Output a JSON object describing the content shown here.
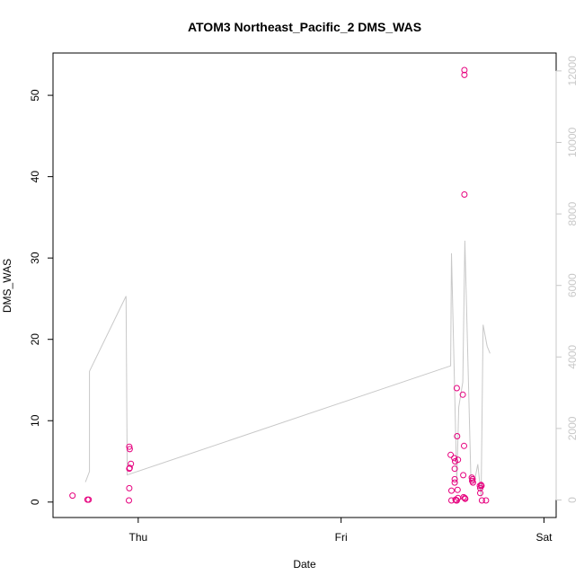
{
  "chart_data": {
    "type": "scatter",
    "title": "ATOM3 Northeast_Pacific_2 DMS_WAS",
    "xlabel": "Date",
    "ylabel": "DMS_WAS",
    "x_ticks": [
      "Thu",
      "Fri",
      "Sat"
    ],
    "xlim": [
      -0.21,
      1.03
    ],
    "ylim": [
      -1.9,
      55.2
    ],
    "y_ticks": [
      0,
      10,
      20,
      30,
      40,
      50
    ],
    "y2_ticks": [
      0,
      2000,
      4000,
      6000,
      8000,
      10000,
      12000
    ],
    "y2lim": [
      -490,
      12500
    ],
    "point_color": "#e6007e",
    "line_color": "#c8c8c8",
    "right_axis_color": "#c8c8c8",
    "series": [
      {
        "kind": "points",
        "points": [
          [
            -0.162,
            0.8
          ],
          [
            -0.125,
            0.3
          ],
          [
            -0.122,
            0.3
          ],
          [
            -0.022,
            6.8
          ],
          [
            -0.021,
            6.5
          ],
          [
            -0.022,
            4.1
          ],
          [
            -0.021,
            4.2
          ],
          [
            -0.018,
            4.7
          ],
          [
            -0.022,
            1.7
          ],
          [
            -0.023,
            0.2
          ],
          [
            0.77,
            5.8
          ],
          [
            0.772,
            1.4
          ],
          [
            0.772,
            0.2
          ],
          [
            0.779,
            5.4
          ],
          [
            0.78,
            4.1
          ],
          [
            0.78,
            2.4
          ],
          [
            0.78,
            2.8
          ],
          [
            0.781,
            5.0
          ],
          [
            0.782,
            0.3
          ],
          [
            0.784,
            0.2
          ],
          [
            0.785,
            0.2
          ],
          [
            0.785,
            14.0
          ],
          [
            0.786,
            8.1
          ],
          [
            0.787,
            1.5
          ],
          [
            0.788,
            0.5
          ],
          [
            0.788,
            5.2
          ],
          [
            0.8,
            13.2
          ],
          [
            0.801,
            3.3
          ],
          [
            0.802,
            0.6
          ],
          [
            0.803,
            6.9
          ],
          [
            0.804,
            53.1
          ],
          [
            0.804,
            52.5
          ],
          [
            0.804,
            37.8
          ],
          [
            0.805,
            0.5
          ],
          [
            0.806,
            0.4
          ],
          [
            0.822,
            3.0
          ],
          [
            0.823,
            2.6
          ],
          [
            0.824,
            2.8
          ],
          [
            0.825,
            2.4
          ],
          [
            0.842,
            2.0
          ],
          [
            0.843,
            1.7
          ],
          [
            0.843,
            1.1
          ],
          [
            0.845,
            2.1
          ],
          [
            0.846,
            2.0
          ],
          [
            0.847,
            0.2
          ],
          [
            0.857,
            0.2
          ]
        ]
      },
      {
        "kind": "line",
        "axis": "right",
        "points": [
          [
            -0.13,
            500
          ],
          [
            -0.12,
            800
          ],
          [
            -0.12,
            3600
          ],
          [
            -0.03,
            5700
          ],
          [
            -0.027,
            700
          ],
          [
            0.77,
            3750
          ],
          [
            0.772,
            6900
          ],
          [
            0.785,
            480
          ],
          [
            0.79,
            2600
          ],
          [
            0.8,
            3300
          ],
          [
            0.805,
            7250
          ],
          [
            0.815,
            2800
          ],
          [
            0.82,
            500
          ],
          [
            0.83,
            600
          ],
          [
            0.837,
            1000
          ],
          [
            0.845,
            100
          ],
          [
            0.85,
            4900
          ],
          [
            0.86,
            4300
          ],
          [
            0.867,
            4100
          ]
        ]
      }
    ],
    "grid": false
  }
}
